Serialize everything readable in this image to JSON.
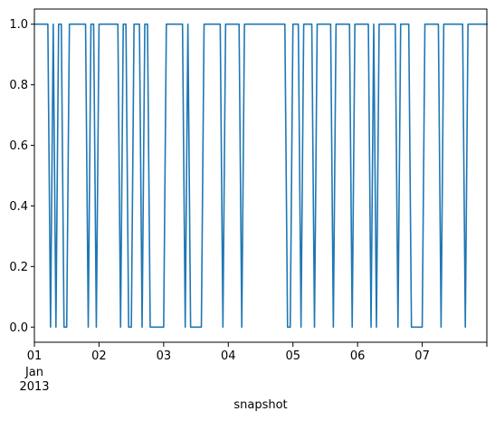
{
  "chart_data": {
    "type": "line",
    "title": "",
    "xlabel": "snapshot",
    "ylabel": "",
    "x_unit": "hours since 2013-01-01 00:00",
    "xlim": [
      0,
      168
    ],
    "ylim": [
      -0.05,
      1.05
    ],
    "x_ticks": [
      {
        "x": 0,
        "label": "01",
        "sub": [
          "Jan",
          "2013"
        ]
      },
      {
        "x": 24,
        "label": "02"
      },
      {
        "x": 48,
        "label": "03"
      },
      {
        "x": 72,
        "label": "04"
      },
      {
        "x": 96,
        "label": "05"
      },
      {
        "x": 120,
        "label": "06"
      },
      {
        "x": 144,
        "label": "07"
      },
      {
        "x": 168,
        "label": ""
      }
    ],
    "y_ticks": [
      {
        "y": 0.0,
        "label": "0.0"
      },
      {
        "y": 0.2,
        "label": "0.2"
      },
      {
        "y": 0.4,
        "label": "0.4"
      },
      {
        "y": 0.6,
        "label": "0.6"
      },
      {
        "y": 0.8,
        "label": "0.8"
      },
      {
        "y": 1.0,
        "label": "1.0"
      }
    ],
    "grid": false,
    "series": [
      {
        "color": "#1f77b4",
        "x": [
          0,
          5,
          6,
          7,
          8,
          9,
          10,
          11,
          12,
          13,
          19,
          20,
          21,
          22,
          23,
          24,
          25,
          31,
          32,
          33,
          34,
          35,
          36,
          37,
          39,
          40,
          41,
          42,
          43,
          48,
          49,
          50,
          55,
          56,
          57,
          58,
          62,
          63,
          64,
          69,
          70,
          71,
          76,
          77,
          78,
          93,
          94,
          95,
          96,
          98,
          99,
          100,
          103,
          104,
          105,
          110,
          111,
          112,
          117,
          118,
          119,
          123,
          124,
          125,
          126,
          127,
          128,
          134,
          135,
          136,
          139,
          140,
          144,
          145,
          146,
          150,
          151,
          152,
          159,
          160,
          161,
          168
        ],
        "y": [
          1,
          1,
          0,
          1,
          0,
          1,
          1,
          0,
          0,
          1,
          1,
          0,
          1,
          1,
          0,
          1,
          1,
          1,
          0,
          1,
          1,
          0,
          0,
          1,
          1,
          0,
          1,
          1,
          0,
          0,
          1,
          1,
          1,
          0,
          1,
          0,
          0,
          1,
          1,
          1,
          0,
          1,
          1,
          0,
          1,
          1,
          0,
          0,
          1,
          1,
          0,
          1,
          1,
          0,
          1,
          1,
          0,
          1,
          1,
          0,
          1,
          1,
          1,
          0,
          1,
          0,
          1,
          1,
          0,
          1,
          1,
          0,
          0,
          1,
          1,
          1,
          0,
          1,
          1,
          0,
          1,
          1
        ]
      }
    ]
  }
}
